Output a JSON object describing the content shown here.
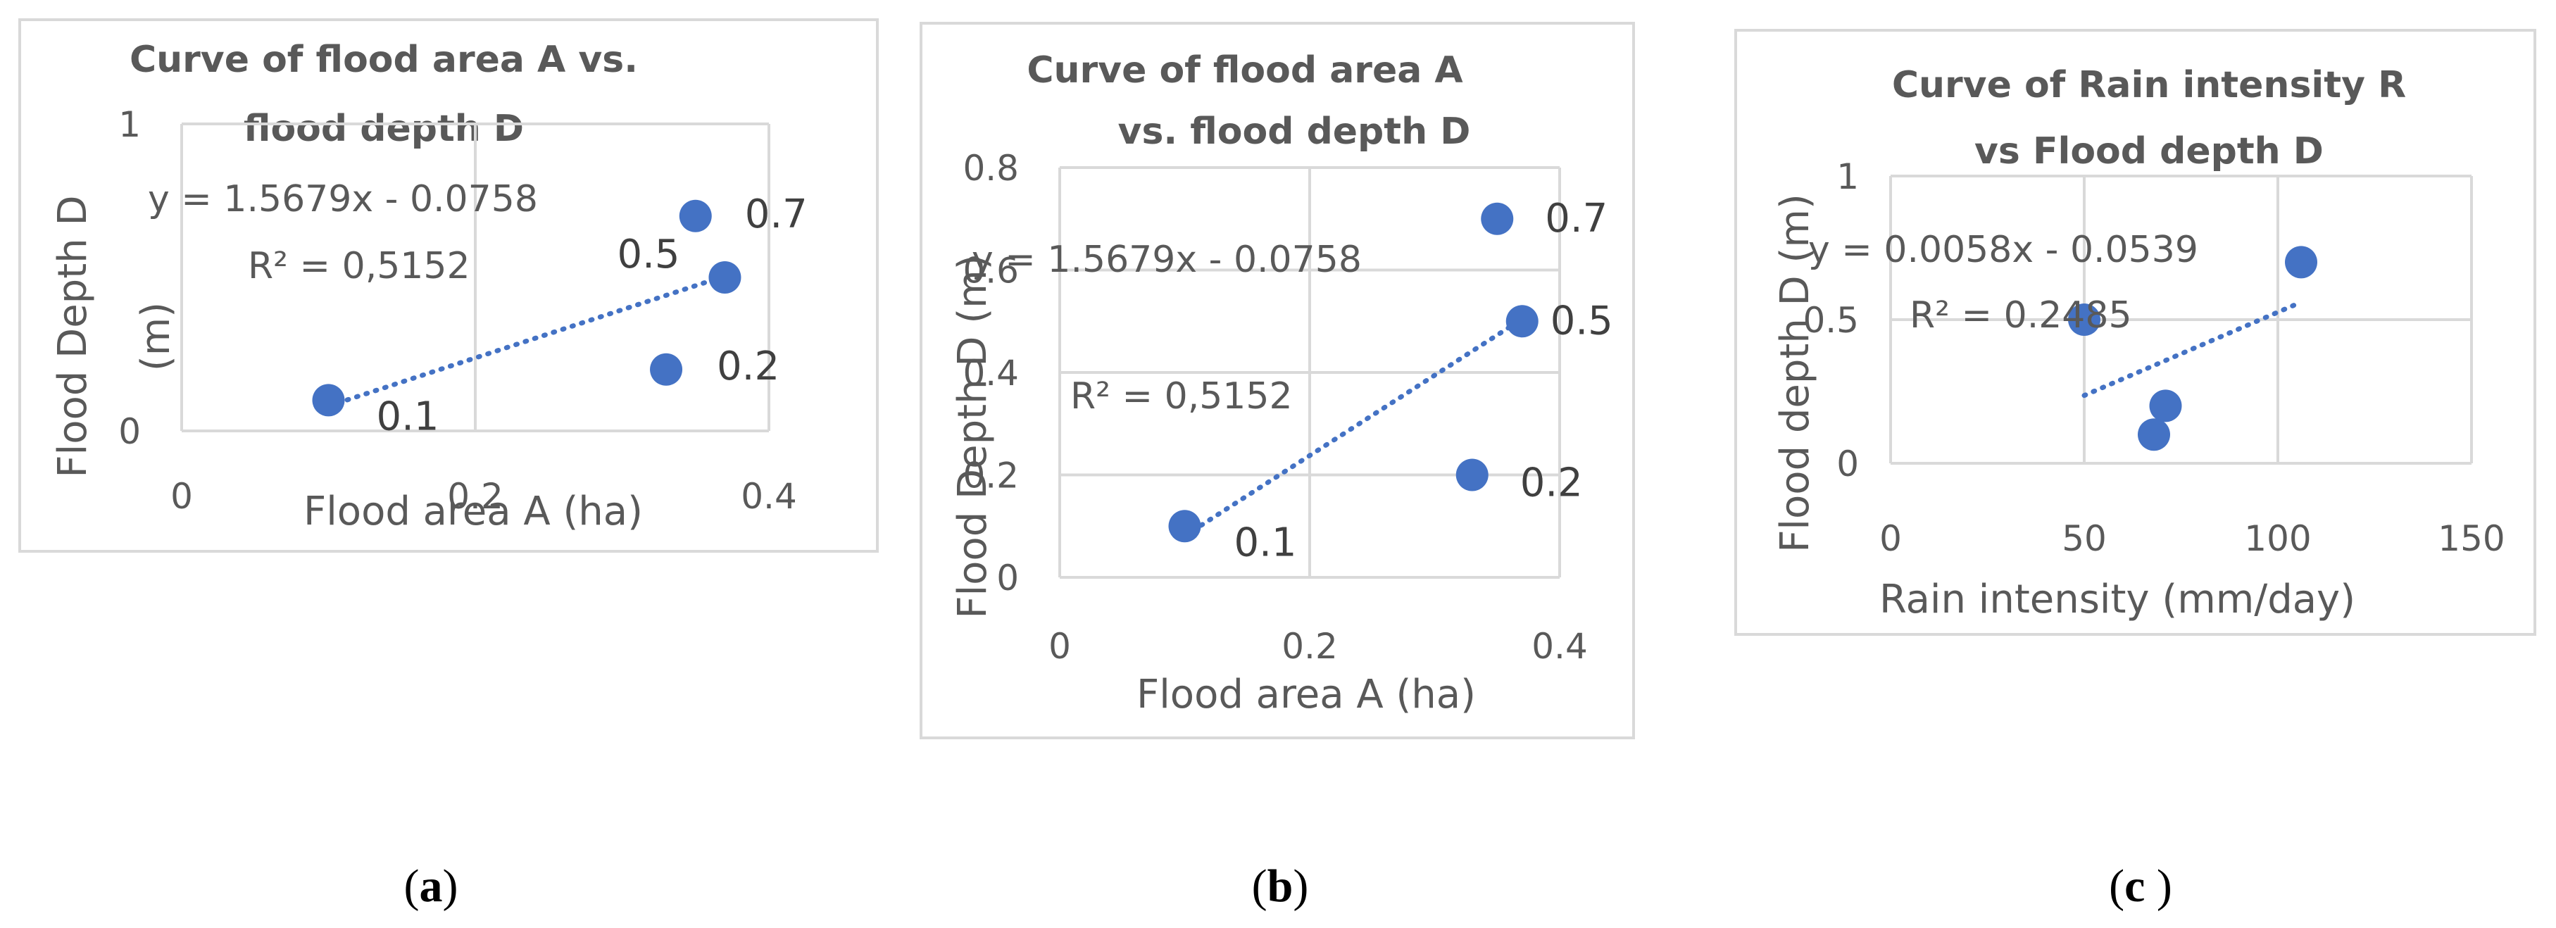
{
  "colors": {
    "marker": "#4472c4",
    "grid": "#d9d9d9",
    "text": "#595959",
    "label": "#404040"
  },
  "chart_data": [
    {
      "type": "scatter",
      "panel": "a",
      "caption": {
        "open": "(",
        "letter": "a",
        "close": ")"
      },
      "title_lines": [
        "Curve of flood area A vs.",
        "flood depth D"
      ],
      "xlabel": "Flood area A (ha)",
      "ylabel_lines": [
        "Flood Depth D",
        "(m)"
      ],
      "xlim": [
        0,
        0.4
      ],
      "ylim": [
        0,
        1
      ],
      "xticks": [
        0,
        0.2,
        0.4
      ],
      "xtick_labels": [
        "0",
        "0.2",
        "0.4"
      ],
      "yticks": [
        0,
        1
      ],
      "ytick_labels": [
        "0",
        "1"
      ],
      "grid": true,
      "points": [
        {
          "x": 0.1,
          "y": 0.1,
          "label": "0.1"
        },
        {
          "x": 0.33,
          "y": 0.2,
          "label": "0.2"
        },
        {
          "x": 0.35,
          "y": 0.7,
          "label": "0.7"
        },
        {
          "x": 0.37,
          "y": 0.5,
          "label": "0.5"
        }
      ],
      "trendline": {
        "slope": 1.5679,
        "intercept": -0.0758,
        "x_range": [
          0.1,
          0.37
        ]
      },
      "equation": "y = 1.5679x - 0.0758",
      "r_squared": "R² = 0,5152"
    },
    {
      "type": "scatter",
      "panel": "b",
      "caption": {
        "open": "(",
        "letter": "b",
        "close": ")"
      },
      "title_lines": [
        "Curve of flood area A",
        "vs. flood depth D"
      ],
      "xlabel": "Flood area A (ha)",
      "ylabel_lines": [
        "Flood Depth D (m)"
      ],
      "xlim": [
        0,
        0.4
      ],
      "ylim": [
        0,
        0.8
      ],
      "xticks": [
        0,
        0.2,
        0.4
      ],
      "xtick_labels": [
        "0",
        "0.2",
        "0.4"
      ],
      "yticks": [
        0,
        0.2,
        0.4,
        0.6,
        0.8
      ],
      "ytick_labels": [
        "0",
        "0.2",
        "0.4",
        "0.6",
        "0.8"
      ],
      "grid": true,
      "points": [
        {
          "x": 0.1,
          "y": 0.1,
          "label": "0.1"
        },
        {
          "x": 0.33,
          "y": 0.2,
          "label": "0.2"
        },
        {
          "x": 0.35,
          "y": 0.7,
          "label": "0.7"
        },
        {
          "x": 0.37,
          "y": 0.5,
          "label": "0.5"
        }
      ],
      "trendline": {
        "slope": 1.5679,
        "intercept": -0.0758,
        "x_range": [
          0.1,
          0.37
        ]
      },
      "equation": "y = 1.5679x - 0.0758",
      "r_squared": "R² = 0,5152"
    },
    {
      "type": "scatter",
      "panel": "c",
      "caption": {
        "open": "(",
        "letter": "c",
        "close": " )"
      },
      "title_lines": [
        "Curve of Rain intensity R",
        "vs Flood depth D"
      ],
      "xlabel": "Rain intensity (mm/day)",
      "ylabel_lines": [
        "Flood depth D (m)"
      ],
      "xlim": [
        0,
        150
      ],
      "ylim": [
        0,
        1
      ],
      "xticks": [
        0,
        50,
        100,
        150
      ],
      "xtick_labels": [
        "0",
        "50",
        "100",
        "150"
      ],
      "yticks": [
        0,
        0.5,
        1
      ],
      "ytick_labels": [
        "0",
        "0.5",
        "1"
      ],
      "grid": true,
      "points": [
        {
          "x": 50,
          "y": 0.5
        },
        {
          "x": 68,
          "y": 0.1
        },
        {
          "x": 71,
          "y": 0.2
        },
        {
          "x": 106,
          "y": 0.7
        }
      ],
      "trendline": {
        "slope": 0.0058,
        "intercept": -0.0539,
        "x_range": [
          50,
          106
        ]
      },
      "equation": "y = 0.0058x - 0.0539",
      "r_squared": "R² = 0.2485"
    }
  ]
}
